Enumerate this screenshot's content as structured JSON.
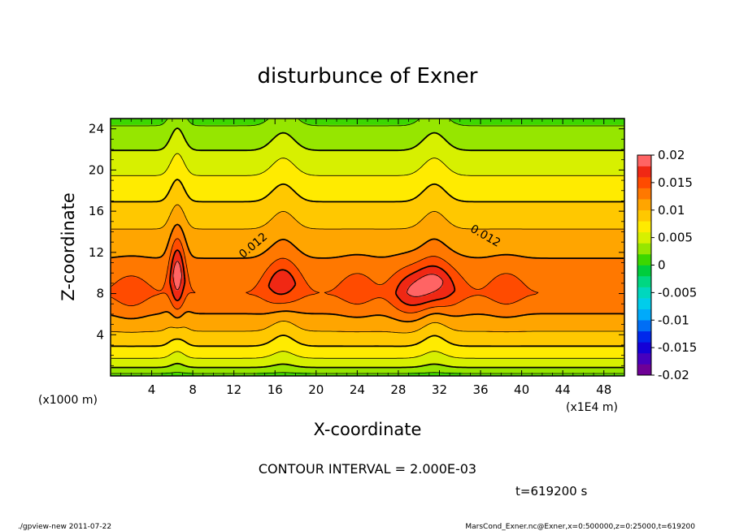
{
  "chart_data": {
    "type": "contour",
    "title": "disturbunce of Exner",
    "xlabel": "X-coordinate",
    "ylabel": "Z-coordinate",
    "x_unit": "(x1E4 m)",
    "y_unit": "(x1000 m)",
    "xlim": [
      0,
      50
    ],
    "ylim": [
      0,
      25
    ],
    "x_ticks": [
      "4",
      "8",
      "12",
      "16",
      "20",
      "24",
      "28",
      "32",
      "36",
      "40",
      "44",
      "48"
    ],
    "x_tick_values": [
      4,
      8,
      12,
      16,
      20,
      24,
      28,
      32,
      36,
      40,
      44,
      48
    ],
    "y_ticks": [
      "4",
      "8",
      "12",
      "16",
      "20",
      "24"
    ],
    "y_tick_values": [
      4,
      8,
      12,
      16,
      20,
      24
    ],
    "contour_interval_text": "CONTOUR INTERVAL = 2.000E-03",
    "time_text": "t=619200 s",
    "contour_labels": [
      {
        "text": "0.012",
        "x": 14.1,
        "z": 12.4,
        "angle": -40
      },
      {
        "text": "0.012",
        "x": 36.3,
        "z": 13.3,
        "angle": 30
      }
    ],
    "colorbar": {
      "min": -0.02,
      "max": 0.02,
      "interval": 0.002,
      "tick_labels": [
        "0.02",
        "0.015",
        "0.01",
        "0.005",
        "0",
        "-0.005",
        "-0.01",
        "-0.015",
        "-0.02"
      ],
      "tick_values": [
        0.02,
        0.015,
        0.01,
        0.005,
        0,
        -0.005,
        -0.01,
        -0.015,
        -0.02
      ]
    },
    "field_features": {
      "background_max": 0.014,
      "background_peak_z": 8,
      "peaks": [
        {
          "x": 6.5,
          "z": 9,
          "value": 0.02
        },
        {
          "x": 16.7,
          "z": 8.5,
          "value": 0.018
        },
        {
          "x": 31.3,
          "z": 8.5,
          "value": 0.0195
        },
        {
          "x": 28.8,
          "z": 8,
          "value": 0.0165
        },
        {
          "x": 2.0,
          "z": 8,
          "value": 0.0155
        },
        {
          "x": 24.0,
          "z": 8.5,
          "value": 0.0155
        },
        {
          "x": 38.5,
          "z": 8.5,
          "value": 0.0155
        }
      ],
      "ridges_x": [
        6.5,
        16.8,
        31.5
      ]
    }
  },
  "footer": {
    "left": "./gpview-new   2011-07-22",
    "right": "MarsCond_Exner.nc@Exner,x=0:500000,z=0:25000,t=619200"
  }
}
